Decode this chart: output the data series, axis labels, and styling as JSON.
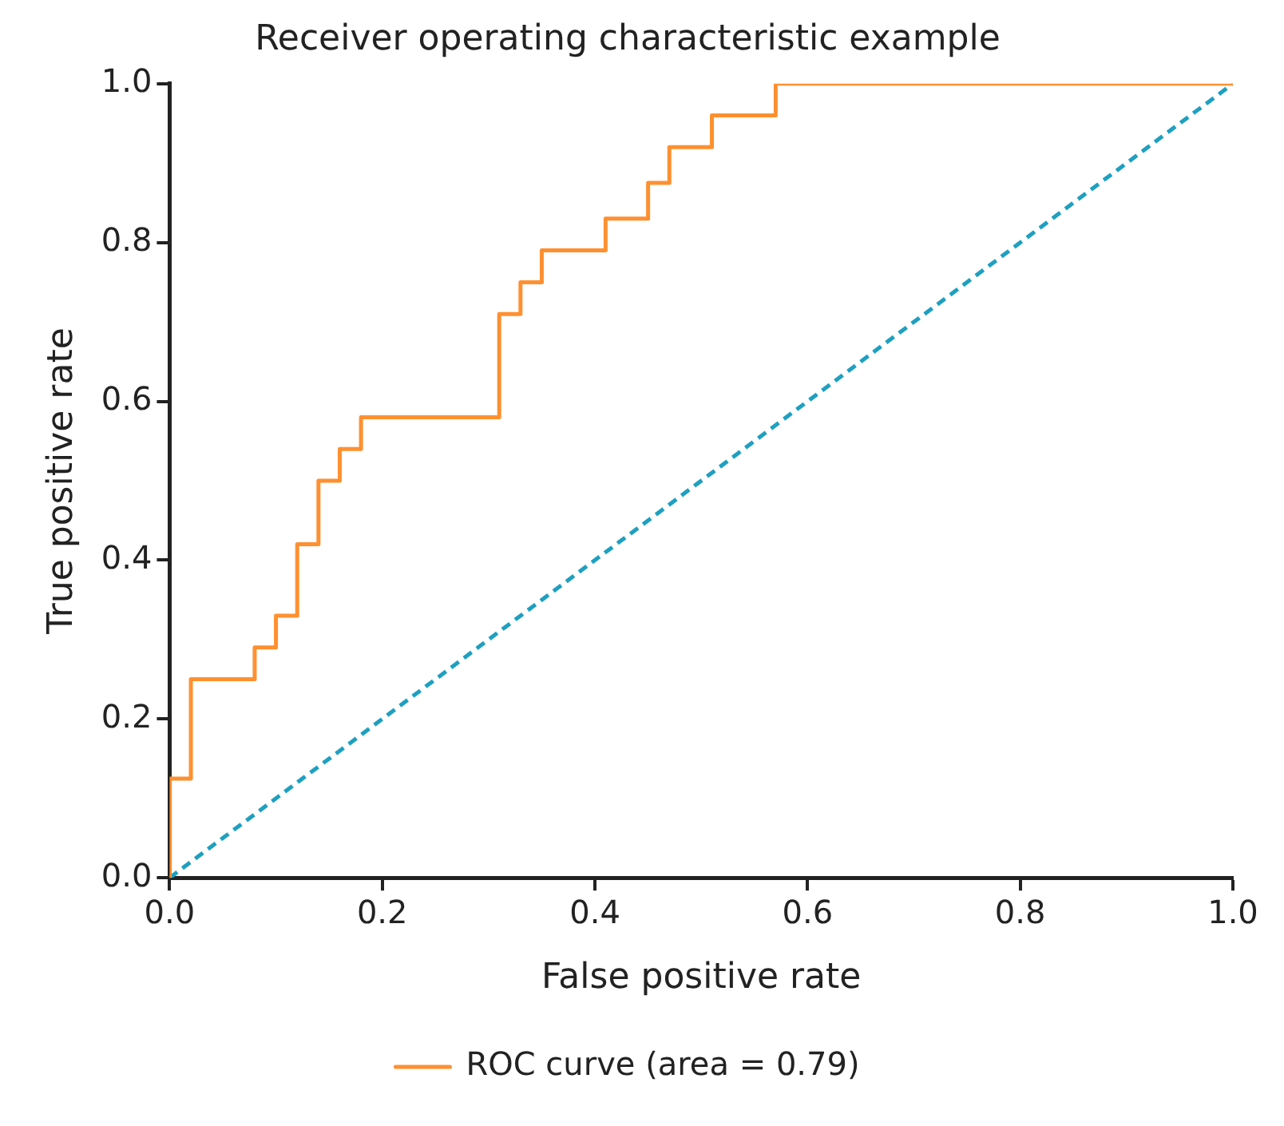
{
  "chart_data": {
    "type": "step",
    "title": "Receiver operating characteristic example",
    "xlabel": "False positive rate",
    "ylabel": "True positive rate",
    "xlim": [
      0,
      1
    ],
    "ylim": [
      0,
      1
    ],
    "xticks": [
      {
        "value": 0,
        "label": "0.0"
      },
      0.2,
      0.4,
      0.6,
      0.8,
      {
        "value": 1,
        "label": "1.0"
      }
    ],
    "yticks": [
      {
        "value": 0,
        "label": "0.0"
      },
      0.2,
      0.4,
      0.6,
      0.8,
      {
        "value": 1,
        "label": "1.0"
      }
    ],
    "grid": false,
    "legend": "bottom",
    "marker": "none",
    "series": [
      {
        "name": "ROC curve (area = 0.79)",
        "color": "#ff9030",
        "type": "step",
        "line_style": "solid",
        "x": [
          0,
          0,
          0.02,
          0.08,
          0.1,
          0.12,
          0.14,
          0.16,
          0.18,
          0.31,
          0.33,
          0.35,
          0.41,
          0.45,
          0.47,
          0.51,
          0.57,
          1
        ],
        "values": [
          0,
          0.125,
          0.25,
          0.29,
          0.33,
          0.42,
          0.5,
          0.54,
          0.58,
          0.71,
          0.75,
          0.79,
          0.83,
          0.875,
          0.92,
          0.96,
          1,
          1
        ]
      },
      {
        "color": "#1ea0c0",
        "type": "line",
        "line_style": "dashed",
        "x": [
          0,
          1
        ],
        "values": [
          0,
          1
        ]
      }
    ]
  }
}
